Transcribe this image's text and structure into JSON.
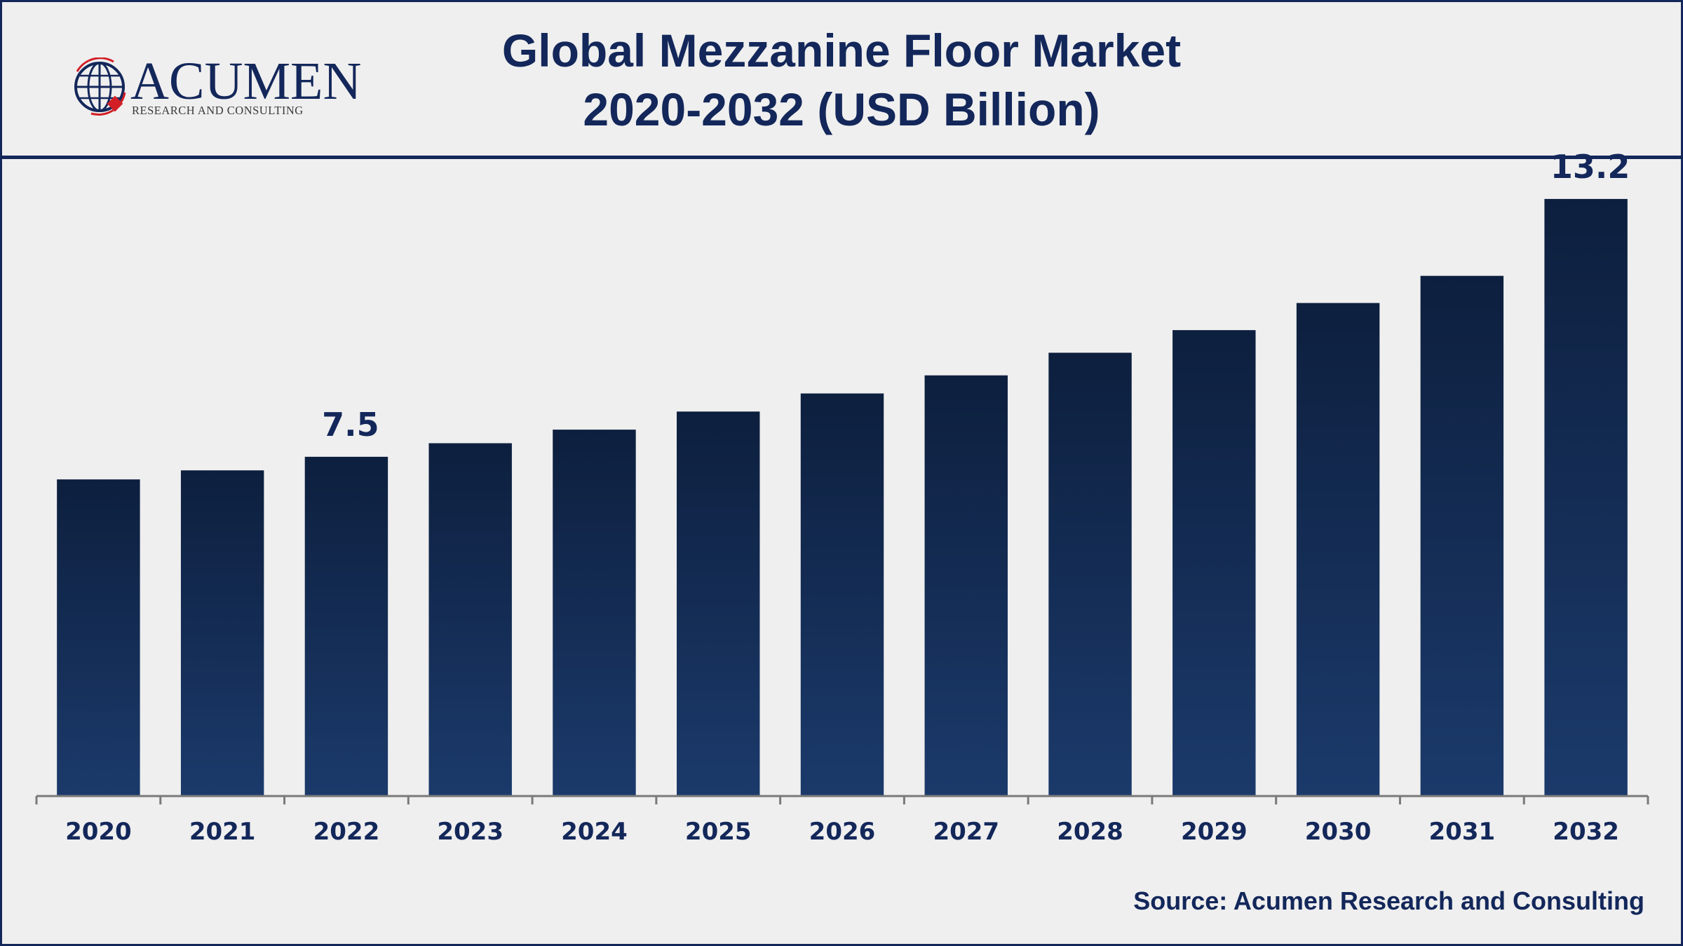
{
  "logo": {
    "name": "ACUMEN",
    "tagline": "RESEARCH AND CONSULTING"
  },
  "title": {
    "line1": "Global Mezzanine Floor Market",
    "line2": "2020-2032 (USD Billion)"
  },
  "source": "Source: Acumen Research and Consulting",
  "colors": {
    "bar_top": "#0d1f3e",
    "bar_bottom": "#1b3a6b",
    "text": "#13275a",
    "axis": "#7a7a7a",
    "background": "#efefef"
  },
  "chart_data": {
    "type": "bar",
    "categories": [
      "2020",
      "2021",
      "2022",
      "2023",
      "2024",
      "2025",
      "2026",
      "2027",
      "2028",
      "2029",
      "2030",
      "2031",
      "2032"
    ],
    "values": [
      7.0,
      7.2,
      7.5,
      7.8,
      8.1,
      8.5,
      8.9,
      9.3,
      9.8,
      10.3,
      10.9,
      11.5,
      13.2
    ],
    "data_labels": {
      "2022": "7.5",
      "2032": "13.2"
    },
    "title": "Global Mezzanine Floor Market 2020-2032 (USD Billion)",
    "xlabel": "",
    "ylabel": "",
    "ylim": [
      0,
      14.5
    ],
    "grid": false,
    "legend": "none"
  }
}
